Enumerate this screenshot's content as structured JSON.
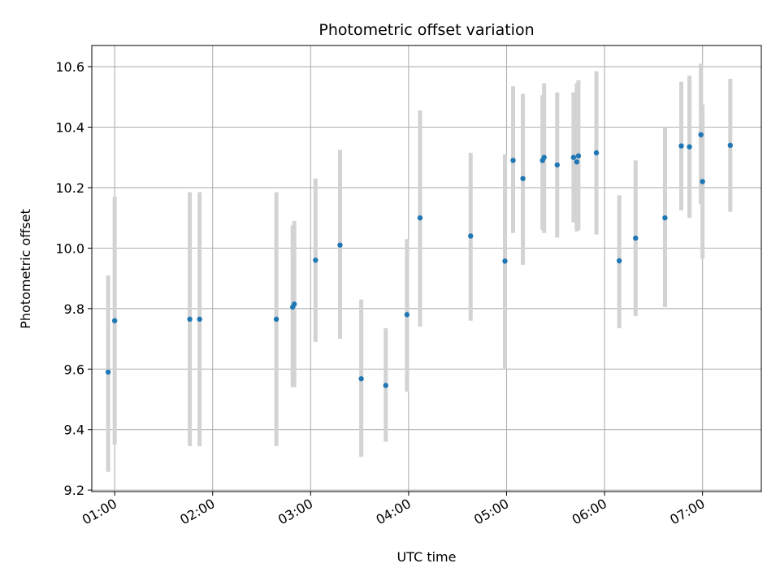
{
  "chart_data": {
    "type": "scatter",
    "title": "Photometric offset variation",
    "xlabel": "UTC time",
    "ylabel": "Photometric offset",
    "xlim": [
      "00:46",
      "07:36"
    ],
    "ylim": [
      9.195,
      10.67
    ],
    "x_ticks": [
      "01:00",
      "02:00",
      "03:00",
      "04:00",
      "05:00",
      "06:00",
      "07:00"
    ],
    "y_ticks": [
      "9.2",
      "9.4",
      "9.6",
      "9.8",
      "10.0",
      "10.2",
      "10.4",
      "10.6"
    ],
    "grid": true,
    "colors": {
      "point": "#1f77b4",
      "errorbar": "#d3d3d3",
      "grid": "#b0b0b0"
    },
    "points": [
      {
        "t": "00:56",
        "y": 9.59,
        "ylow": 9.26,
        "yhigh": 9.91
      },
      {
        "t": "01:00",
        "y": 9.76,
        "ylow": 9.35,
        "yhigh": 10.17
      },
      {
        "t": "01:46",
        "y": 9.765,
        "ylow": 9.345,
        "yhigh": 10.185
      },
      {
        "t": "01:52",
        "y": 9.765,
        "ylow": 9.345,
        "yhigh": 10.185
      },
      {
        "t": "02:39",
        "y": 9.765,
        "ylow": 9.345,
        "yhigh": 10.185
      },
      {
        "t": "02:49",
        "y": 9.805,
        "ylow": 9.54,
        "yhigh": 10.075
      },
      {
        "t": "02:50",
        "y": 9.815,
        "ylow": 9.54,
        "yhigh": 10.09
      },
      {
        "t": "03:03",
        "y": 9.96,
        "ylow": 9.69,
        "yhigh": 10.23
      },
      {
        "t": "03:18",
        "y": 10.01,
        "ylow": 9.7,
        "yhigh": 10.325
      },
      {
        "t": "03:31",
        "y": 9.568,
        "ylow": 9.31,
        "yhigh": 9.83
      },
      {
        "t": "03:46",
        "y": 9.546,
        "ylow": 9.36,
        "yhigh": 9.735
      },
      {
        "t": "03:59",
        "y": 9.78,
        "ylow": 9.525,
        "yhigh": 10.03
      },
      {
        "t": "04:07",
        "y": 10.1,
        "ylow": 9.74,
        "yhigh": 10.455
      },
      {
        "t": "04:38",
        "y": 10.04,
        "ylow": 9.76,
        "yhigh": 10.315
      },
      {
        "t": "04:59",
        "y": 9.957,
        "ylow": 9.6,
        "yhigh": 10.31
      },
      {
        "t": "05:04",
        "y": 10.29,
        "ylow": 10.05,
        "yhigh": 10.535
      },
      {
        "t": "05:10",
        "y": 10.23,
        "ylow": 9.945,
        "yhigh": 10.51
      },
      {
        "t": "05:22",
        "y": 10.29,
        "ylow": 10.06,
        "yhigh": 10.505
      },
      {
        "t": "05:23",
        "y": 10.3,
        "ylow": 10.05,
        "yhigh": 10.545
      },
      {
        "t": "05:31",
        "y": 10.275,
        "ylow": 10.035,
        "yhigh": 10.515
      },
      {
        "t": "05:41",
        "y": 10.3,
        "ylow": 10.085,
        "yhigh": 10.515
      },
      {
        "t": "05:43",
        "y": 10.285,
        "ylow": 10.055,
        "yhigh": 10.545
      },
      {
        "t": "05:44",
        "y": 10.305,
        "ylow": 10.06,
        "yhigh": 10.555
      },
      {
        "t": "05:55",
        "y": 10.315,
        "ylow": 10.045,
        "yhigh": 10.585
      },
      {
        "t": "06:09",
        "y": 9.958,
        "ylow": 9.735,
        "yhigh": 10.175
      },
      {
        "t": "06:19",
        "y": 10.033,
        "ylow": 9.775,
        "yhigh": 10.29
      },
      {
        "t": "06:37",
        "y": 10.1,
        "ylow": 9.805,
        "yhigh": 10.4
      },
      {
        "t": "06:47",
        "y": 10.338,
        "ylow": 10.125,
        "yhigh": 10.55
      },
      {
        "t": "06:52",
        "y": 10.335,
        "ylow": 10.1,
        "yhigh": 10.57
      },
      {
        "t": "06:59",
        "y": 10.375,
        "ylow": 10.145,
        "yhigh": 10.61
      },
      {
        "t": "07:00",
        "y": 10.22,
        "ylow": 9.965,
        "yhigh": 10.475
      },
      {
        "t": "07:17",
        "y": 10.34,
        "ylow": 10.12,
        "yhigh": 10.56
      }
    ]
  }
}
